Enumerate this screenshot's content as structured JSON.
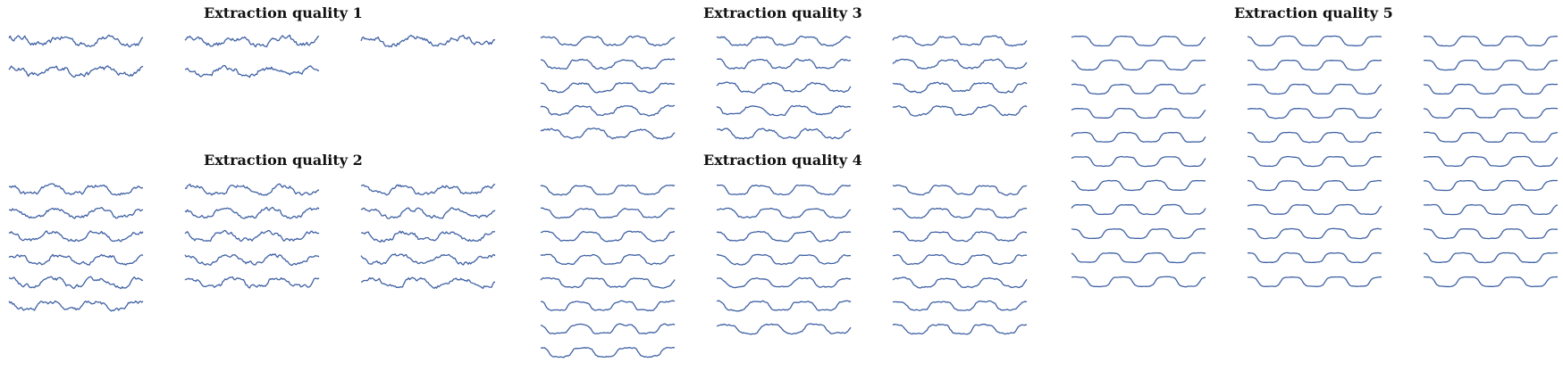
{
  "chart_data": {
    "type": "line",
    "line_color": "#3f61a4",
    "groups": [
      {
        "title": "Extraction quality 1",
        "columns": [
          2,
          2,
          1
        ]
      },
      {
        "title": "Extraction quality 2",
        "columns": [
          6,
          5,
          5
        ]
      },
      {
        "title": "Extraction quality 3",
        "columns": [
          5,
          5,
          4
        ]
      },
      {
        "title": "Extraction quality 4",
        "columns": [
          8,
          7,
          7
        ]
      },
      {
        "title": "Extraction quality 5",
        "columns": [
          11,
          11,
          11
        ]
      }
    ]
  }
}
